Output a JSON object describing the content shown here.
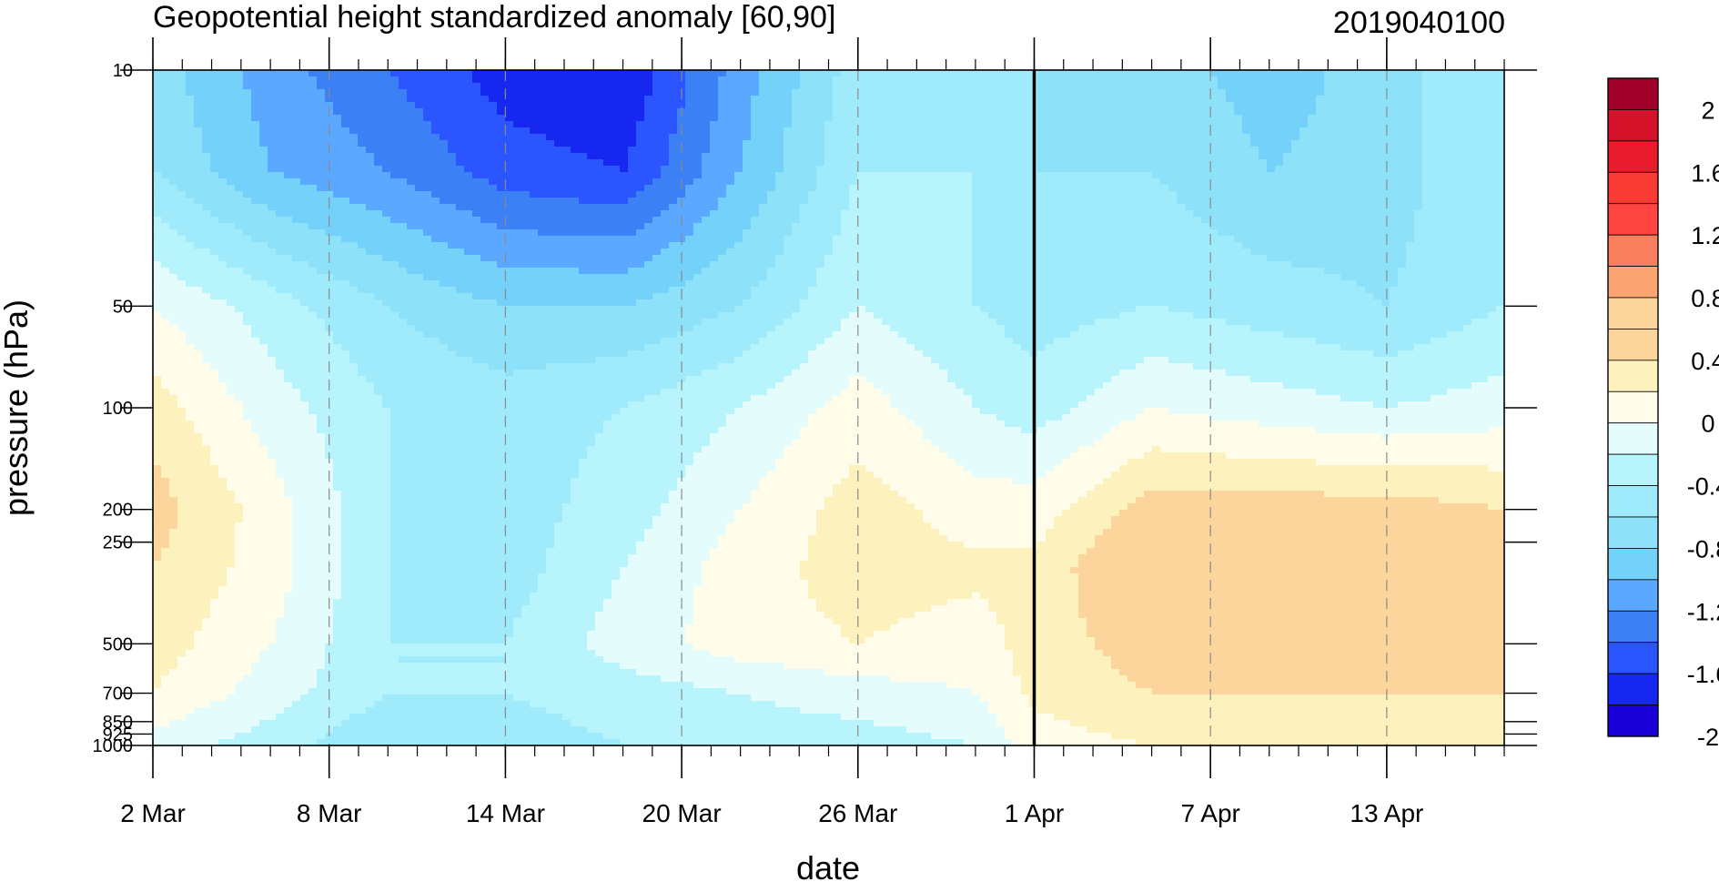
{
  "chart_data": {
    "type": "heatmap",
    "title": "Geopotential height standardized anomaly [60,90]",
    "subtitle": "2019040100",
    "xlabel": "date",
    "ylabel": "pressure (hPa)",
    "x_ticks": [
      "2 Mar",
      "8 Mar",
      "14 Mar",
      "20 Mar",
      "26 Mar",
      "1 Apr",
      "7 Apr",
      "13 Apr"
    ],
    "x_range": [
      "2019-03-02",
      "2019-04-17"
    ],
    "y_ticks": [
      10,
      50,
      100,
      200,
      250,
      500,
      700,
      850,
      925,
      1000
    ],
    "y_tick_labels": [
      "10",
      "50",
      "100",
      "200",
      "250",
      "500",
      "700",
      "850",
      "925",
      "1000"
    ],
    "y_scale": "log",
    "y_inverted": true,
    "y_range": [
      10,
      1000
    ],
    "grid": "vertical dashed lines at x ticks",
    "marker_line": {
      "date": "2019-04-01",
      "style": "solid thick black vertical line"
    },
    "colorbar": {
      "labels": [
        "2",
        "1.6",
        "1.2",
        "0.8",
        "0.4",
        "0",
        "-0.4",
        "-0.8",
        "-1.2",
        "-1.6",
        "-2"
      ],
      "levels": [
        -2.2,
        -2,
        -1.8,
        -1.6,
        -1.4,
        -1.2,
        -1,
        -0.8,
        -0.6,
        -0.4,
        -0.2,
        0,
        0.2,
        0.4,
        0.6,
        0.8,
        1,
        1.2,
        1.4,
        1.6,
        1.8,
        2,
        2.2
      ],
      "colors": [
        "#1a00d6",
        "#1628f0",
        "#2a55ff",
        "#3b80f5",
        "#5aa8ff",
        "#74d1fa",
        "#8de2fa",
        "#a0ebfb",
        "#b8f4fc",
        "#e5fcfd",
        "#fffdea",
        "#fdf1bd",
        "#fcd59c",
        "#fcd59c",
        "#fca572",
        "#f97f5e",
        "#fe4542",
        "#f93a35",
        "#e81c2c",
        "#d6122b",
        "#a1002a"
      ],
      "position": "right"
    },
    "grid_data": {
      "dates": [
        "2019-03-02",
        "2019-03-06",
        "2019-03-10",
        "2019-03-14",
        "2019-03-18",
        "2019-03-22",
        "2019-03-26",
        "2019-03-30",
        "2019-04-01",
        "2019-04-05",
        "2019-04-09",
        "2019-04-13",
        "2019-04-17"
      ],
      "pressure_hPa": [
        10,
        20,
        50,
        100,
        200,
        300,
        500,
        700,
        1000
      ],
      "values": [
        [
          -0.9,
          -1.3,
          -1.6,
          -1.9,
          -2.0,
          -1.3,
          -0.7,
          -0.6,
          -0.8,
          -0.9,
          -1.1,
          -0.9,
          -0.6
        ],
        [
          -0.8,
          -1.2,
          -1.4,
          -1.7,
          -1.8,
          -1.2,
          -0.6,
          -0.6,
          -0.8,
          -0.8,
          -1.0,
          -0.9,
          -0.6
        ],
        [
          -0.2,
          -0.5,
          -0.8,
          -1.0,
          -1.0,
          -0.8,
          -0.4,
          -0.6,
          -0.7,
          -0.6,
          -0.7,
          -0.8,
          -0.6
        ],
        [
          0.1,
          -0.3,
          -0.6,
          -0.7,
          -0.6,
          -0.4,
          -0.1,
          -0.4,
          -0.5,
          -0.2,
          -0.3,
          -0.4,
          -0.3
        ],
        [
          0.3,
          -0.1,
          -0.6,
          -0.7,
          -0.5,
          -0.2,
          0.1,
          -0.1,
          -0.1,
          0.3,
          0.3,
          0.3,
          0.2
        ],
        [
          0.2,
          -0.1,
          -0.6,
          -0.7,
          -0.4,
          -0.1,
          0.1,
          0.05,
          0.05,
          0.5,
          0.3,
          0.3,
          0.3
        ],
        [
          0.1,
          -0.2,
          -0.6,
          -0.6,
          -0.3,
          -0.1,
          0.0,
          -0.1,
          0.1,
          0.3,
          0.3,
          0.3,
          0.3
        ],
        [
          0.0,
          -0.3,
          -0.6,
          -0.6,
          -0.5,
          -0.4,
          -0.3,
          -0.2,
          0.05,
          0.2,
          0.2,
          0.2,
          0.2
        ],
        [
          -0.3,
          -0.5,
          -0.8,
          -0.7,
          -0.6,
          -0.5,
          -0.5,
          -0.4,
          -0.1,
          0.0,
          0.1,
          0.1,
          0.1
        ]
      ]
    }
  }
}
